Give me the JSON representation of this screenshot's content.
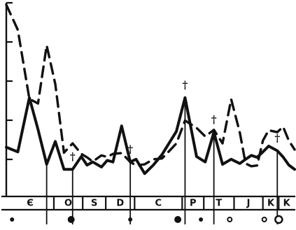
{
  "chart_data": {
    "type": "line",
    "title": "",
    "xlabel": "",
    "ylabel": "",
    "ylim": [
      0,
      5
    ],
    "x": [
      0,
      4,
      8,
      11,
      14,
      17,
      20,
      23,
      26,
      28,
      30,
      33,
      35,
      37,
      40,
      43,
      45,
      48,
      51,
      54,
      57,
      59,
      62,
      66,
      69,
      72,
      75,
      78,
      81,
      83,
      85,
      87,
      89,
      91,
      94,
      96,
      98,
      100
    ],
    "series": [
      {
        "style": "solid",
        "values": [
          1.27,
          1.15,
          2.55,
          1.73,
          0.83,
          1.42,
          0.7,
          0.7,
          1.03,
          0.81,
          0.89,
          0.76,
          0.93,
          0.89,
          1.82,
          0.89,
          0.96,
          0.59,
          0.81,
          1.08,
          1.44,
          1.68,
          2.55,
          1.03,
          0.89,
          1.66,
          0.83,
          0.96,
          0.85,
          0.96,
          1.06,
          1.01,
          1.15,
          1.3,
          1.18,
          1.02,
          0.81,
          0.7
        ]
      },
      {
        "style": "dashed",
        "values": [
          4.95,
          4.3,
          2.52,
          2.4,
          3.9,
          2.9,
          1.13,
          1.37,
          1.1,
          1.01,
          0.9,
          1.06,
          1.02,
          1.1,
          1.12,
          0.89,
          0.8,
          0.83,
          0.96,
          0.98,
          1.21,
          1.37,
          1.96,
          1.77,
          1.55,
          1.72,
          1.37,
          2.51,
          1.65,
          0.85,
          0.78,
          0.8,
          1.44,
          1.71,
          1.66,
          1.8,
          1.44,
          1.21
        ]
      }
    ],
    "peak_markers": [
      {
        "x": 14,
        "glyph": ""
      },
      {
        "x": 23,
        "glyph": "†"
      },
      {
        "x": 43,
        "glyph": "†"
      },
      {
        "x": 62,
        "glyph": "†"
      },
      {
        "x": 72,
        "glyph": "†"
      },
      {
        "x": 94,
        "glyph": "†"
      }
    ],
    "bands": [
      {
        "label": "Є",
        "start": 0,
        "end": 16.5
      },
      {
        "label": "O",
        "start": 16.5,
        "end": 26.5
      },
      {
        "label": "S",
        "start": 26.5,
        "end": 34.5
      },
      {
        "label": "D",
        "start": 34.5,
        "end": 44.5
      },
      {
        "label": "C",
        "start": 44.5,
        "end": 61
      },
      {
        "label": "P",
        "start": 61,
        "end": 68.5
      },
      {
        "label": "T",
        "start": 68.5,
        "end": 79
      },
      {
        "label": "J",
        "start": 79,
        "end": 89
      },
      {
        "label": "K",
        "start": 89,
        "end": 94.5
      },
      {
        "label": "K",
        "start": 94.5,
        "end": 100
      }
    ],
    "markers": [
      {
        "x": 2,
        "kind": "dot",
        "size": "small"
      },
      {
        "x": 22.5,
        "kind": "dot",
        "size": "large"
      },
      {
        "x": 43,
        "kind": "dot",
        "size": "small"
      },
      {
        "x": 59.5,
        "kind": "dot",
        "size": "large"
      },
      {
        "x": 67.5,
        "kind": "dot",
        "size": "small"
      },
      {
        "x": 77.5,
        "kind": "ring",
        "size": "small"
      },
      {
        "x": 89.5,
        "kind": "ring",
        "size": "small"
      },
      {
        "x": 94.5,
        "kind": "ring",
        "size": "large"
      }
    ]
  }
}
